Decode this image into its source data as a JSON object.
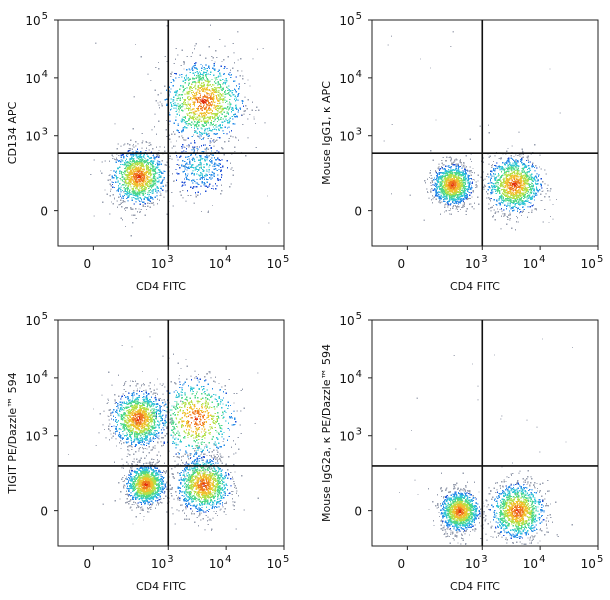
{
  "chart_data": [
    {
      "type": "scatter",
      "xlabel": "CD4 FITC",
      "ylabel": "CD134 APC",
      "x_ticks": [
        "0",
        "10",
        "10",
        "10"
      ],
      "x_tick_exponents": [
        "",
        "3",
        "4",
        "5"
      ],
      "y_ticks": [
        "0",
        "10",
        "10",
        "10"
      ],
      "y_tick_exponents": [
        "",
        "3",
        "4",
        "5"
      ],
      "quadrant_gate": {
        "x": 1000,
        "y": 500
      },
      "populations": [
        {
          "x": 300,
          "y": 200,
          "spread": "medium",
          "density": "high"
        },
        {
          "x": 4000,
          "y": 4000,
          "spread": "wide",
          "density": "high"
        },
        {
          "x": 3500,
          "y": 300,
          "spread": "medium",
          "density": "low"
        }
      ]
    },
    {
      "type": "scatter",
      "xlabel": "CD4 FITC",
      "ylabel": "Mouse IgG1, κ APC",
      "x_ticks": [
        "0",
        "10",
        "10",
        "10"
      ],
      "x_tick_exponents": [
        "",
        "3",
        "4",
        "5"
      ],
      "y_ticks": [
        "0",
        "10",
        "10",
        "10"
      ],
      "y_tick_exponents": [
        "",
        "3",
        "4",
        "5"
      ],
      "quadrant_gate": {
        "x": 1000,
        "y": 500
      },
      "populations": [
        {
          "x": 300,
          "y": 150,
          "spread": "small",
          "density": "high"
        },
        {
          "x": 3500,
          "y": 150,
          "spread": "medium",
          "density": "high"
        }
      ]
    },
    {
      "type": "scatter",
      "xlabel": "CD4 FITC",
      "ylabel": "TIGIT PE/Dazzle™ 594",
      "x_ticks": [
        "0",
        "10",
        "10",
        "10"
      ],
      "x_tick_exponents": [
        "",
        "3",
        "4",
        "5"
      ],
      "y_ticks": [
        "0",
        "10",
        "10",
        "10"
      ],
      "y_tick_exponents": [
        "",
        "3",
        "4",
        "5"
      ],
      "quadrant_gate": {
        "x": 1000,
        "y": 300
      },
      "populations": [
        {
          "x": 300,
          "y": 2000,
          "spread": "medium",
          "density": "high"
        },
        {
          "x": 400,
          "y": 150,
          "spread": "small",
          "density": "high"
        },
        {
          "x": 4000,
          "y": 150,
          "spread": "medium",
          "density": "high"
        },
        {
          "x": 3000,
          "y": 2000,
          "spread": "wide",
          "density": "medium"
        }
      ]
    },
    {
      "type": "scatter",
      "xlabel": "CD4 FITC",
      "ylabel": "Mouse IgG2a, κ PE/Dazzle™ 594",
      "x_ticks": [
        "0",
        "10",
        "10",
        "10"
      ],
      "x_tick_exponents": [
        "",
        "3",
        "4",
        "5"
      ],
      "y_ticks": [
        "0",
        "10",
        "10",
        "10"
      ],
      "y_tick_exponents": [
        "",
        "3",
        "4",
        "5"
      ],
      "quadrant_gate": {
        "x": 1000,
        "y": 300
      },
      "populations": [
        {
          "x": 400,
          "y": 0,
          "spread": "small",
          "density": "high"
        },
        {
          "x": 4000,
          "y": 0,
          "spread": "medium",
          "density": "high"
        }
      ]
    }
  ]
}
